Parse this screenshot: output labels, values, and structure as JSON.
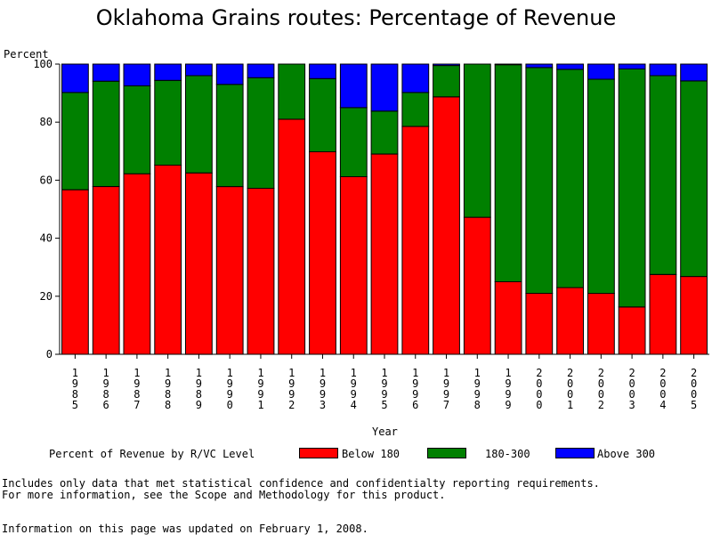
{
  "chart_data": {
    "type": "bar",
    "stacked": true,
    "title": "Oklahoma Grains routes: Percentage of Revenue",
    "ylabel": "Percent",
    "xlabel": "Year",
    "ylim": [
      0,
      100
    ],
    "yticks": [
      0,
      20,
      40,
      60,
      80,
      100
    ],
    "categories": [
      "1985",
      "1986",
      "1987",
      "1988",
      "1989",
      "1990",
      "1991",
      "1992",
      "1993",
      "1994",
      "1995",
      "1996",
      "1997",
      "1998",
      "1999",
      "2000",
      "2001",
      "2002",
      "2003",
      "2004",
      "2005"
    ],
    "series": [
      {
        "name": "Below 180",
        "color": "#ff0000",
        "values": [
          56.7,
          57.8,
          62.2,
          65.2,
          62.5,
          57.8,
          57.2,
          81.0,
          69.8,
          61.2,
          69.0,
          78.5,
          88.7,
          47.2,
          25.0,
          21.0,
          23.0,
          21.0,
          16.3,
          27.5,
          26.8
        ]
      },
      {
        "name": "180-300",
        "color": "#008000",
        "values": [
          33.5,
          36.3,
          30.3,
          29.2,
          33.5,
          35.2,
          38.1,
          19.0,
          25.2,
          23.8,
          14.8,
          11.7,
          10.8,
          52.8,
          74.8,
          77.8,
          75.2,
          73.8,
          82.0,
          68.5,
          67.4
        ]
      },
      {
        "name": "Above 300",
        "color": "#0000ff",
        "values": [
          9.8,
          5.9,
          7.5,
          5.6,
          4.0,
          7.0,
          4.7,
          0.0,
          5.0,
          15.0,
          16.2,
          9.8,
          0.5,
          0.0,
          0.2,
          1.2,
          1.8,
          5.2,
          1.7,
          4.0,
          5.8
        ]
      }
    ],
    "legend_position": "bottom",
    "grid": false
  },
  "legend": {
    "title": "Percent of Revenue by R/VC Level",
    "items": [
      {
        "label": "Below 180",
        "color": "#ff0000"
      },
      {
        "label": "180-300",
        "color": "#008000"
      },
      {
        "label": "Above 300",
        "color": "#0000ff"
      }
    ]
  },
  "footnotes": {
    "line1": "Includes only data that met statistical confidence and confidentialty reporting requirements.",
    "line2": "For more information, see the Scope and Methodology for this product.",
    "updated": "Information on this page was updated on February 1, 2008."
  }
}
